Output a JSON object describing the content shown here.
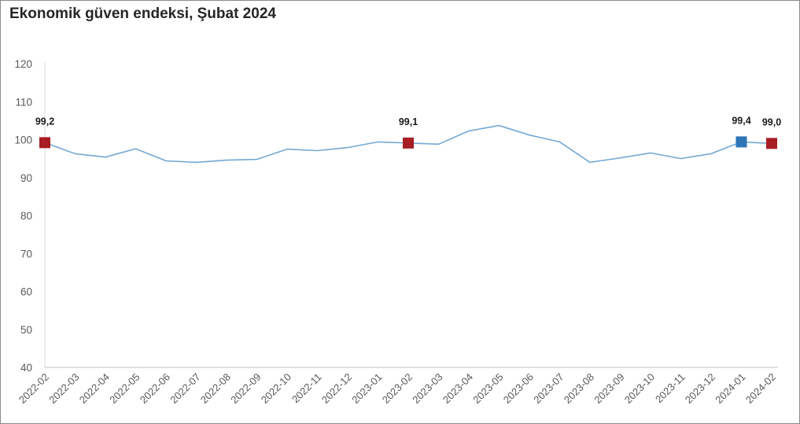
{
  "chart_data": {
    "type": "line",
    "title": "Ekonomik güven endeksi, Şubat 2024",
    "categories": [
      "2022-02",
      "2022-03",
      "2022-04",
      "2022-05",
      "2022-06",
      "2022-07",
      "2022-08",
      "2022-09",
      "2022-10",
      "2022-11",
      "2022-12",
      "2023-01",
      "2023-02",
      "2023-03",
      "2023-04",
      "2023-05",
      "2023-06",
      "2023-07",
      "2023-08",
      "2023-09",
      "2023-10",
      "2023-11",
      "2023-12",
      "2024-01",
      "2024-02"
    ],
    "series": [
      {
        "values": [
          99.2,
          96.3,
          95.4,
          97.6,
          94.4,
          94.0,
          94.6,
          94.8,
          97.5,
          97.1,
          97.9,
          99.4,
          99.1,
          98.8,
          102.3,
          103.7,
          101.2,
          99.4,
          94.0,
          95.2,
          96.5,
          95.0,
          96.3,
          99.4,
          99.0
        ],
        "color": "#74a9d4"
      }
    ],
    "ylim": [
      40,
      120
    ],
    "yticks": [
      40,
      50,
      60,
      70,
      80,
      90,
      100,
      110,
      120
    ],
    "grid": false,
    "legend": "none",
    "highlights": [
      {
        "category": "2022-02",
        "label": "99,2",
        "color": "#a81c24"
      },
      {
        "category": "2023-02",
        "label": "99,1",
        "color": "#a81c24"
      },
      {
        "category": "2024-01",
        "label": "99,4",
        "color": "#2e75b6"
      },
      {
        "category": "2024-02",
        "label": "99,0",
        "color": "#a81c24"
      }
    ]
  }
}
